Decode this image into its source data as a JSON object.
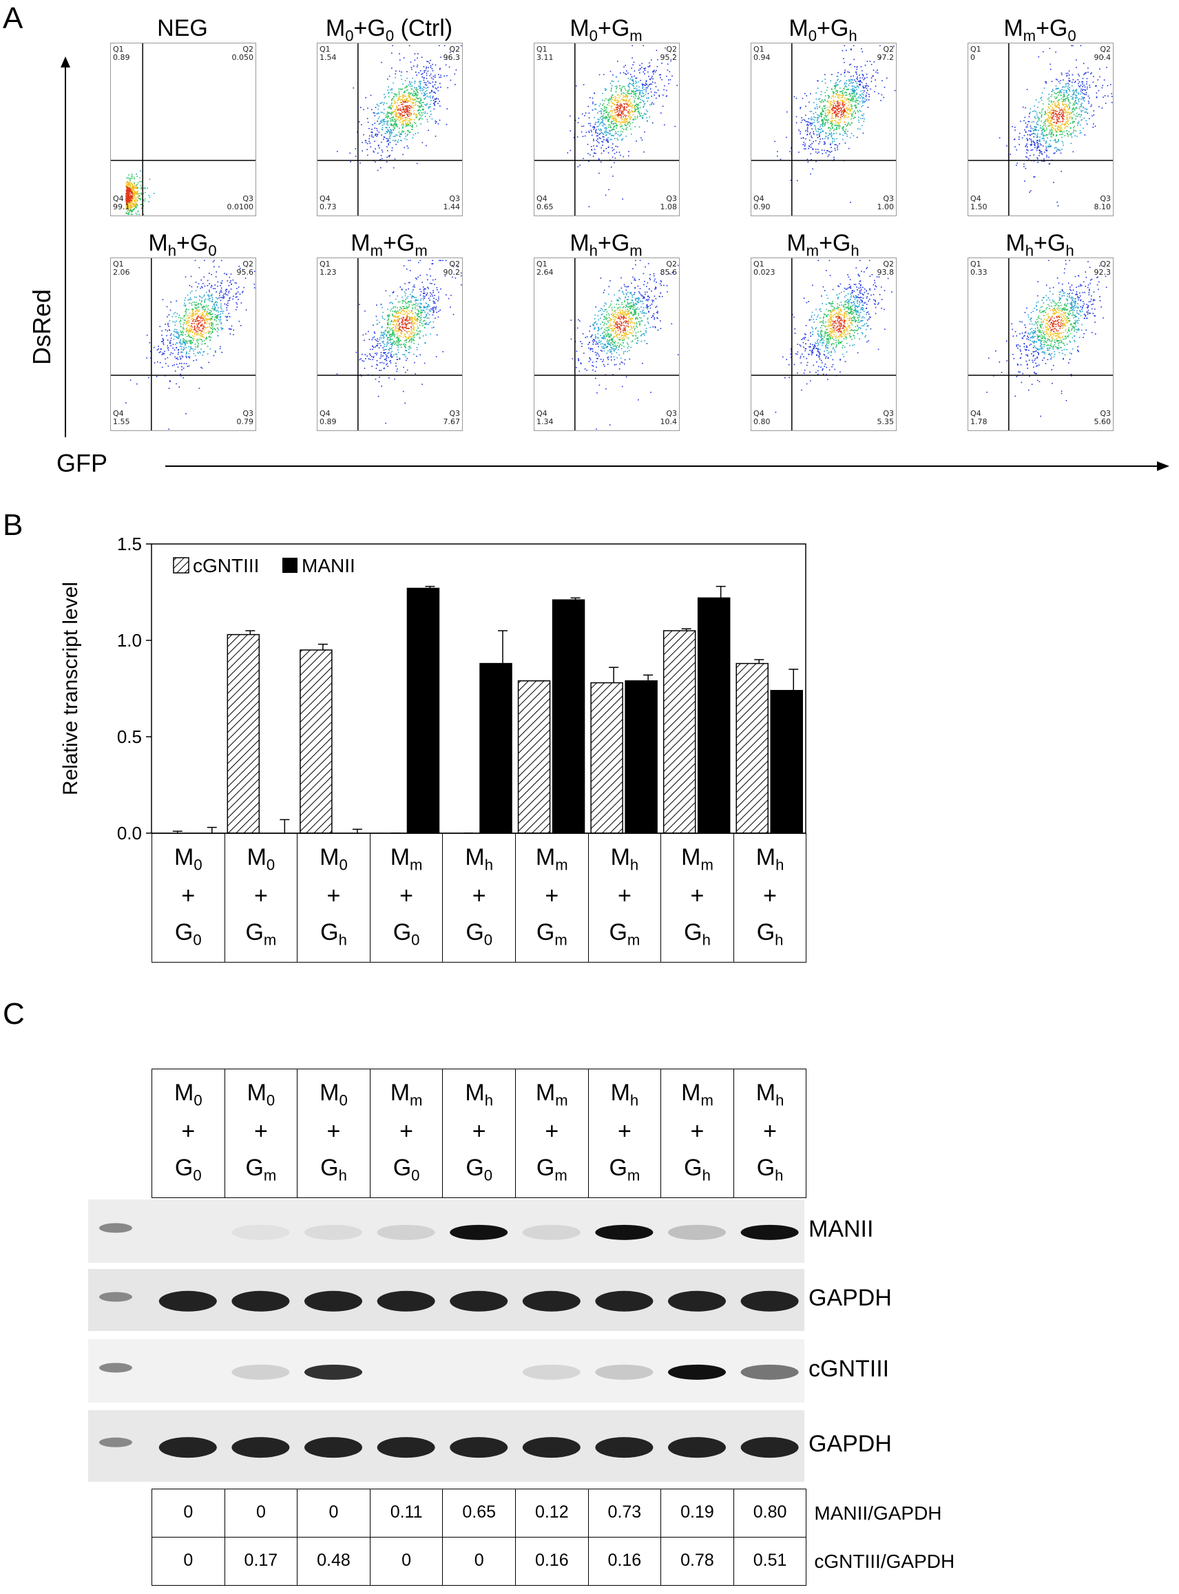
{
  "panels": {
    "a": "A",
    "b": "B",
    "c": "C"
  },
  "flow": {
    "x_axis_label": "GFP",
    "y_axis_label": "DsRed",
    "plots": [
      {
        "title": "NEG",
        "q1": "0.89",
        "q2": "0.050",
        "q3": "0.0100",
        "q4": "99.1"
      },
      {
        "title": "M0+G0 (Ctrl)",
        "q1": "1.54",
        "q2": "96.3",
        "q3": "1.44",
        "q4": "0.73"
      },
      {
        "title": "M0+Gm",
        "q1": "3.11",
        "q2": "95.2",
        "q3": "1.08",
        "q4": "0.65"
      },
      {
        "title": "M0+Gh",
        "q1": "0.94",
        "q2": "97.2",
        "q3": "1.00",
        "q4": "0.90"
      },
      {
        "title": "Mm+G0",
        "q1": "0",
        "q2": "90.4",
        "q3": "8.10",
        "q4": "1.50"
      },
      {
        "title": "Mh+G0",
        "q1": "2.06",
        "q2": "95.6",
        "q3": "0.79",
        "q4": "1.55"
      },
      {
        "title": "Mm+Gm",
        "q1": "1.23",
        "q2": "90.2",
        "q3": "7.67",
        "q4": "0.89"
      },
      {
        "title": "Mh+Gm",
        "q1": "2.64",
        "q2": "85.6",
        "q3": "10.4",
        "q4": "1.34"
      },
      {
        "title": "Mm+Gh",
        "q1": "0.023",
        "q2": "93.8",
        "q3": "5.35",
        "q4": "0.80"
      },
      {
        "title": "Mh+Gh",
        "q1": "0.33",
        "q2": "92.3",
        "q3": "5.60",
        "q4": "1.78"
      }
    ],
    "quadrant_names": [
      "Q1",
      "Q2",
      "Q3",
      "Q4"
    ]
  },
  "chart_data": {
    "type": "bar",
    "ylabel": "Relative transcript level",
    "xlabel": "",
    "ylim": [
      0,
      1.5
    ],
    "yticks": [
      "0.0",
      "0.5",
      "1.0",
      "1.5"
    ],
    "categories": [
      "M0+G0",
      "M0+Gm",
      "M0+Gh",
      "Mm+G0",
      "Mh+G0",
      "Mm+Gm",
      "Mh+Gm",
      "Mm+Gh",
      "Mh+Gh"
    ],
    "series": [
      {
        "name": "cGNTIII",
        "pattern": "hatched",
        "values": [
          0.0,
          1.03,
          0.95,
          0.0,
          0.0,
          0.79,
          0.78,
          1.05,
          0.88
        ],
        "errors": [
          0.01,
          0.02,
          0.03,
          0.0,
          0.0,
          0.0,
          0.08,
          0.01,
          0.02
        ]
      },
      {
        "name": "MANII",
        "pattern": "solid",
        "values": [
          0.0,
          0.0,
          0.0,
          1.27,
          0.88,
          1.21,
          0.79,
          1.22,
          0.74
        ],
        "errors": [
          0.03,
          0.07,
          0.02,
          0.01,
          0.17,
          0.01,
          0.03,
          0.06,
          0.11
        ]
      }
    ],
    "legend": "top-left",
    "grid": false
  },
  "category_labels": [
    {
      "m": "M",
      "ms": "0",
      "g": "G",
      "gs": "0"
    },
    {
      "m": "M",
      "ms": "0",
      "g": "G",
      "gs": "m"
    },
    {
      "m": "M",
      "ms": "0",
      "g": "G",
      "gs": "h"
    },
    {
      "m": "M",
      "ms": "m",
      "g": "G",
      "gs": "0"
    },
    {
      "m": "M",
      "ms": "h",
      "g": "G",
      "gs": "0"
    },
    {
      "m": "M",
      "ms": "m",
      "g": "G",
      "gs": "m"
    },
    {
      "m": "M",
      "ms": "h",
      "g": "G",
      "gs": "m"
    },
    {
      "m": "M",
      "ms": "m",
      "g": "G",
      "gs": "h"
    },
    {
      "m": "M",
      "ms": "h",
      "g": "G",
      "gs": "h"
    }
  ],
  "plus": "+",
  "blots": {
    "labels": [
      "MANII",
      "GAPDH",
      "cGNTIII",
      "GAPDH"
    ],
    "manii_intensity": [
      0,
      0.05,
      0.08,
      0.12,
      1.0,
      0.1,
      1.0,
      0.2,
      1.0
    ],
    "cgntiii_intensity": [
      0,
      0.15,
      0.85,
      0,
      0,
      0.12,
      0.18,
      1.0,
      0.55
    ]
  },
  "ratios": {
    "manii_label": "MANII/GAPDH",
    "cgntiii_label": "cGNTIII/GAPDH",
    "manii": [
      "0",
      "0",
      "0",
      "0.11",
      "0.65",
      "0.12",
      "0.73",
      "0.19",
      "0.80"
    ],
    "cgntiii": [
      "0",
      "0.17",
      "0.48",
      "0",
      "0",
      "0.16",
      "0.16",
      "0.78",
      "0.51"
    ]
  }
}
